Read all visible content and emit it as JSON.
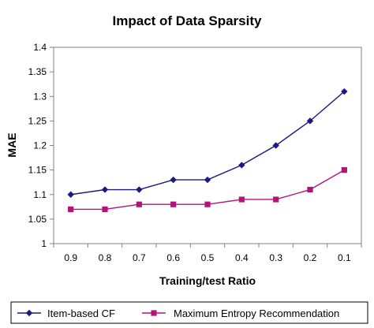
{
  "chart_data": {
    "type": "line",
    "title": "Impact of Data Sparsity",
    "xlabel": "Training/test Ratio",
    "ylabel": "MAE",
    "categories": [
      "0.9",
      "0.8",
      "0.7",
      "0.6",
      "0.5",
      "0.4",
      "0.3",
      "0.2",
      "0.1"
    ],
    "ylim": [
      1,
      1.4
    ],
    "yticks": [
      "1",
      "1.05",
      "1.1",
      "1.15",
      "1.2",
      "1.25",
      "1.3",
      "1.35",
      "1.4"
    ],
    "grid": false,
    "legend_position": "bottom",
    "series": [
      {
        "name": "Item-based CF",
        "values": [
          1.1,
          1.11,
          1.11,
          1.13,
          1.13,
          1.16,
          1.2,
          1.25,
          1.31
        ],
        "color": "#1a1a80",
        "marker": "diamond"
      },
      {
        "name": "Maximum Entropy Recommendation",
        "values": [
          1.07,
          1.07,
          1.08,
          1.08,
          1.08,
          1.09,
          1.09,
          1.11,
          1.15
        ],
        "color": "#b3127a",
        "marker": "square"
      }
    ]
  }
}
